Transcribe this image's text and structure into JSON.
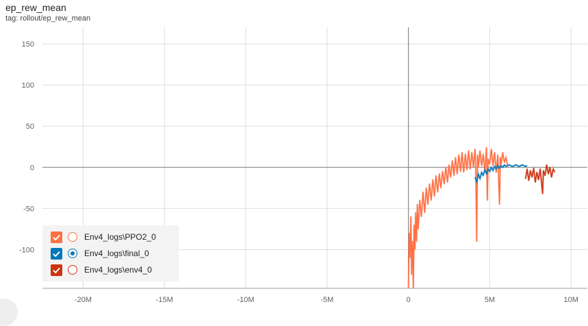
{
  "header": {
    "title": "ep_rew_mean",
    "tag": "tag: rollout/ep_rew_mean"
  },
  "colors": {
    "grid": "#dddddd",
    "axis": "#9e9e9e",
    "zero_axis": "#888888"
  },
  "chart_data": {
    "type": "line",
    "title": "ep_rew_mean",
    "xlabel": "",
    "ylabel": "",
    "xlim": [
      -22500000,
      11000000
    ],
    "ylim": [
      -147,
      170
    ],
    "x_ticks": [
      -20000000,
      -15000000,
      -10000000,
      -5000000,
      0,
      5000000,
      10000000
    ],
    "x_tick_labels": [
      "-20M",
      "-15M",
      "-10M",
      "-5M",
      "0",
      "5M",
      "10M"
    ],
    "y_ticks": [
      -100,
      -50,
      0,
      50,
      100,
      150
    ],
    "y_tick_labels": [
      "-100",
      "-50",
      "0",
      "50",
      "100",
      "150"
    ],
    "grid": true,
    "legend_position": "bottom-left",
    "series": [
      {
        "name": "Env4_logs\\PPO2_0",
        "color": "#ff7043",
        "selected": false,
        "points": [
          [
            0,
            -147
          ],
          [
            50000,
            -80
          ],
          [
            100000,
            -110
          ],
          [
            150000,
            -60
          ],
          [
            200000,
            -130
          ],
          [
            250000,
            -90
          ],
          [
            300000,
            -147
          ],
          [
            350000,
            -70
          ],
          [
            400000,
            -100
          ],
          [
            450000,
            -55
          ],
          [
            500000,
            -90
          ],
          [
            550000,
            -45
          ],
          [
            600000,
            -75
          ],
          [
            700000,
            -40
          ],
          [
            800000,
            -60
          ],
          [
            900000,
            -30
          ],
          [
            1000000,
            -55
          ],
          [
            1100000,
            -25
          ],
          [
            1200000,
            -45
          ],
          [
            1300000,
            -20
          ],
          [
            1400000,
            -40
          ],
          [
            1500000,
            -15
          ],
          [
            1600000,
            -35
          ],
          [
            1700000,
            -10
          ],
          [
            1800000,
            -30
          ],
          [
            1900000,
            -8
          ],
          [
            2000000,
            -25
          ],
          [
            2100000,
            -5
          ],
          [
            2200000,
            -20
          ],
          [
            2300000,
            0
          ],
          [
            2400000,
            -18
          ],
          [
            2500000,
            3
          ],
          [
            2600000,
            -12
          ],
          [
            2700000,
            8
          ],
          [
            2800000,
            -10
          ],
          [
            2900000,
            12
          ],
          [
            3000000,
            -8
          ],
          [
            3100000,
            15
          ],
          [
            3200000,
            -5
          ],
          [
            3300000,
            18
          ],
          [
            3400000,
            -6
          ],
          [
            3500000,
            16
          ],
          [
            3600000,
            -3
          ],
          [
            3700000,
            20
          ],
          [
            3800000,
            -2
          ],
          [
            3900000,
            18
          ],
          [
            4000000,
            0
          ],
          [
            4100000,
            22
          ],
          [
            4150000,
            -5
          ],
          [
            4200000,
            -90
          ],
          [
            4250000,
            15
          ],
          [
            4300000,
            0
          ],
          [
            4400000,
            20
          ],
          [
            4500000,
            2
          ],
          [
            4600000,
            16
          ],
          [
            4700000,
            -5
          ],
          [
            4800000,
            24
          ],
          [
            4850000,
            -40
          ],
          [
            4900000,
            10
          ],
          [
            5000000,
            4
          ],
          [
            5100000,
            22
          ],
          [
            5200000,
            2
          ],
          [
            5300000,
            18
          ],
          [
            5400000,
            -6
          ],
          [
            5500000,
            15
          ],
          [
            5600000,
            -45
          ],
          [
            5650000,
            12
          ],
          [
            5700000,
            4
          ],
          [
            5800000,
            18
          ],
          [
            5900000,
            6
          ],
          [
            6000000,
            12
          ],
          [
            6100000,
            2
          ]
        ]
      },
      {
        "name": "Env4_logs\\final_0",
        "color": "#0077bb",
        "selected": true,
        "points": [
          [
            4100000,
            -12
          ],
          [
            4200000,
            -18
          ],
          [
            4300000,
            -8
          ],
          [
            4400000,
            -14
          ],
          [
            4500000,
            -6
          ],
          [
            4600000,
            -10
          ],
          [
            4700000,
            -3
          ],
          [
            4800000,
            -8
          ],
          [
            4900000,
            -2
          ],
          [
            5000000,
            -5
          ],
          [
            5100000,
            0
          ],
          [
            5200000,
            -4
          ],
          [
            5300000,
            1
          ],
          [
            5400000,
            -2
          ],
          [
            5500000,
            2
          ],
          [
            5600000,
            -1
          ],
          [
            5700000,
            2
          ],
          [
            5800000,
            0
          ],
          [
            5900000,
            3
          ],
          [
            6000000,
            1
          ],
          [
            6200000,
            3
          ],
          [
            6400000,
            1
          ],
          [
            6600000,
            3
          ],
          [
            6800000,
            1
          ],
          [
            7000000,
            3
          ],
          [
            7200000,
            1
          ],
          [
            7300000,
            2
          ]
        ]
      },
      {
        "name": "Env4_logs\\env4_0",
        "color": "#cc3311",
        "selected": false,
        "points": [
          [
            7200000,
            -14
          ],
          [
            7300000,
            -2
          ],
          [
            7400000,
            -16
          ],
          [
            7500000,
            -4
          ],
          [
            7600000,
            -12
          ],
          [
            7700000,
            -1
          ],
          [
            7800000,
            -18
          ],
          [
            7900000,
            -6
          ],
          [
            8000000,
            -15
          ],
          [
            8100000,
            -2
          ],
          [
            8200000,
            -22
          ],
          [
            8250000,
            -32
          ],
          [
            8300000,
            -4
          ],
          [
            8400000,
            -10
          ],
          [
            8500000,
            3
          ],
          [
            8600000,
            -8
          ],
          [
            8700000,
            0
          ],
          [
            8800000,
            -12
          ],
          [
            8900000,
            -2
          ],
          [
            9000000,
            -6
          ]
        ]
      }
    ]
  },
  "legend": {
    "items": [
      {
        "label": "Env4_logs\\PPO2_0",
        "color": "#ff7043",
        "checked": true,
        "selected": false
      },
      {
        "label": "Env4_logs\\final_0",
        "color": "#0077bb",
        "checked": true,
        "selected": true
      },
      {
        "label": "Env4_logs\\env4_0",
        "color": "#cc3311",
        "checked": true,
        "selected": false
      }
    ]
  }
}
